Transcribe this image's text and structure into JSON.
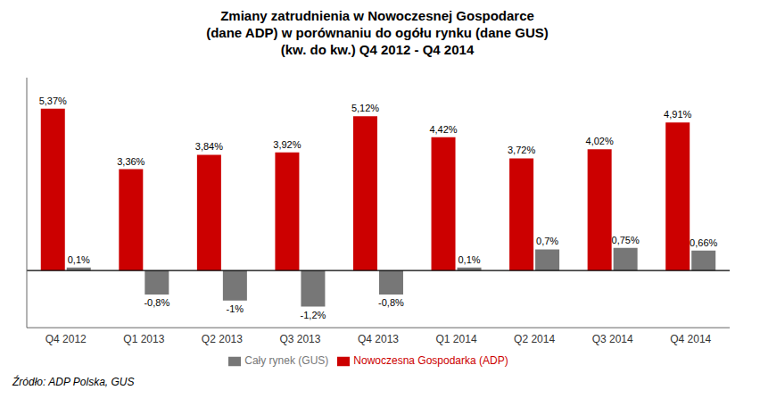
{
  "chart_data": {
    "type": "bar",
    "title": "Zmiany zatrudnienia w Nowoczesnej Gospodarce\n(dane ADP) w porównaniu do ogółu rynku (dane GUS)\n(kw. do kw.) Q4 2012 - Q4 2014",
    "categories": [
      "Q4 2012",
      "Q1 2013",
      "Q2 2013",
      "Q3 2013",
      "Q4 2013",
      "Q1 2014",
      "Q2 2014",
      "Q3 2014",
      "Q4 2014"
    ],
    "series": [
      {
        "name": "Nowoczesna Gospodarka (ADP)",
        "color": "#CC0000",
        "values": [
          5.37,
          3.36,
          3.84,
          3.92,
          5.12,
          4.42,
          3.72,
          4.02,
          4.91
        ],
        "value_labels": [
          "5,37%",
          "3,36%",
          "3,84%",
          "3,92%",
          "5,12%",
          "4,42%",
          "3,72%",
          "4,02%",
          "4,91%"
        ]
      },
      {
        "name": "Cały rynek (GUS)",
        "color": "#777777",
        "values": [
          0.1,
          -0.8,
          -1.0,
          -1.2,
          -0.8,
          0.1,
          0.7,
          0.75,
          0.66
        ],
        "value_labels": [
          "0,1%",
          "-0,8%",
          "-1%",
          "-1,2%",
          "-0,8%",
          "0,1%",
          "0,7%",
          "0,75%",
          "0,66%"
        ]
      }
    ],
    "ylim": [
      -1.9,
      6.4
    ],
    "data_labels": true,
    "tick_labels": "x",
    "legend": "bottom",
    "grid": false,
    "annotations": [
      "Źródło: ADP Polska, GUS"
    ]
  }
}
